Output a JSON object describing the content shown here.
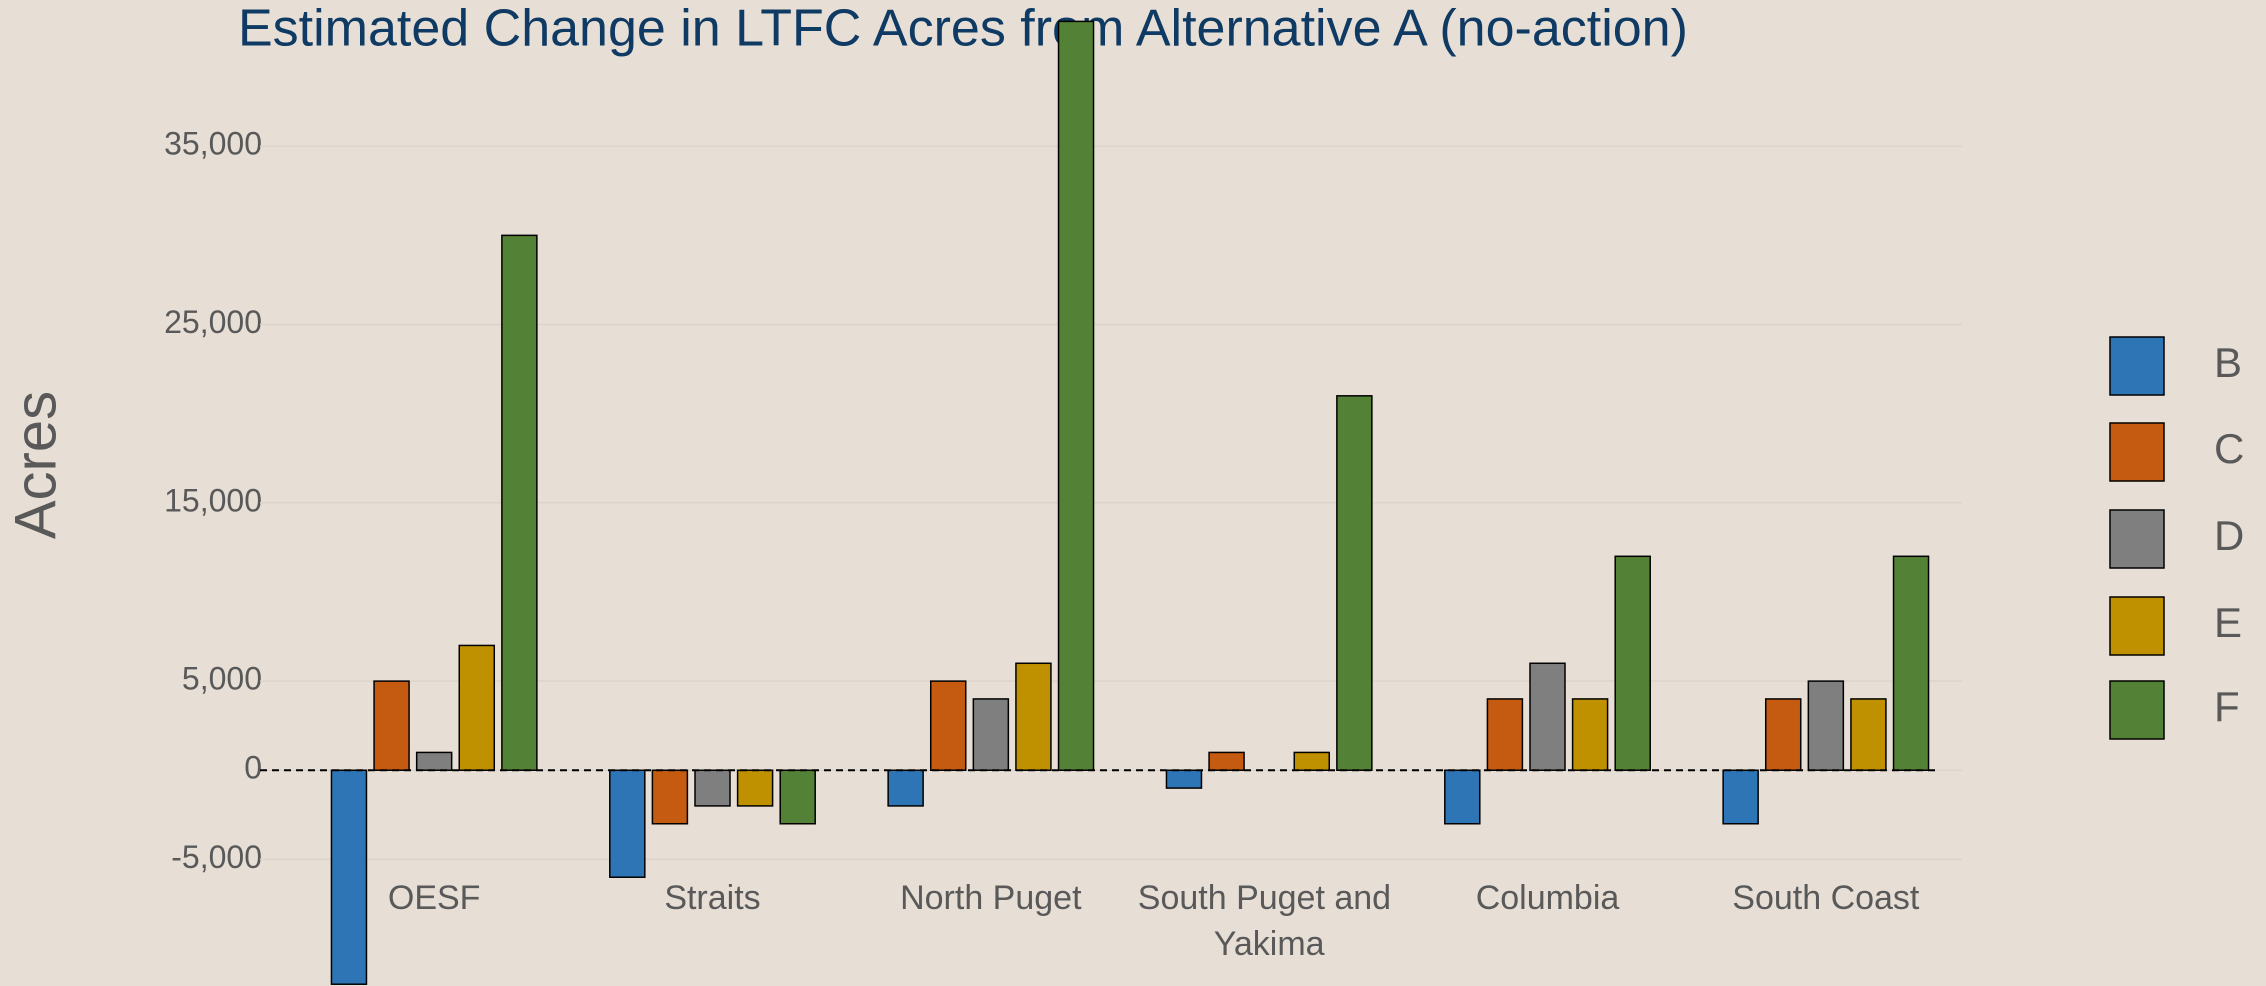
{
  "chart_data": {
    "type": "bar",
    "title": "Estimated Change in LTFC Acres from Alternative A (no-action)",
    "y_label": "Acres",
    "categories": [
      "OESF",
      "Straits",
      "North Puget",
      "South Puget and Yakima",
      "Columbia",
      "South Coast"
    ],
    "series": [
      {
        "name": "B",
        "color": "#2e75b6",
        "values": [
          -12000,
          -6000,
          -2000,
          -1000,
          -3000,
          -3000
        ]
      },
      {
        "name": "C",
        "color": "#c55a11",
        "values": [
          5000,
          -3000,
          5000,
          1000,
          4000,
          4000
        ]
      },
      {
        "name": "D",
        "color": "#7f7f7f",
        "values": [
          1000,
          -2000,
          4000,
          0,
          6000,
          5000
        ]
      },
      {
        "name": "E",
        "color": "#bf9000",
        "values": [
          7000,
          -2000,
          6000,
          1000,
          4000,
          4000
        ]
      },
      {
        "name": "F",
        "color": "#538135",
        "values": [
          30000,
          -3000,
          42000,
          21000,
          12000,
          12000
        ]
      }
    ],
    "ylim": [
      -12100,
      43200
    ],
    "yticks": [
      {
        "value": -5000,
        "label": "-5,000"
      },
      0,
      {
        "value": 5000,
        "label": "5,000"
      },
      {
        "value": 15000,
        "label": "15,000"
      },
      {
        "value": 25000,
        "label": "25,000"
      },
      {
        "value": 35000,
        "label": "35,000"
      }
    ],
    "grid": true,
    "legend": "right"
  }
}
